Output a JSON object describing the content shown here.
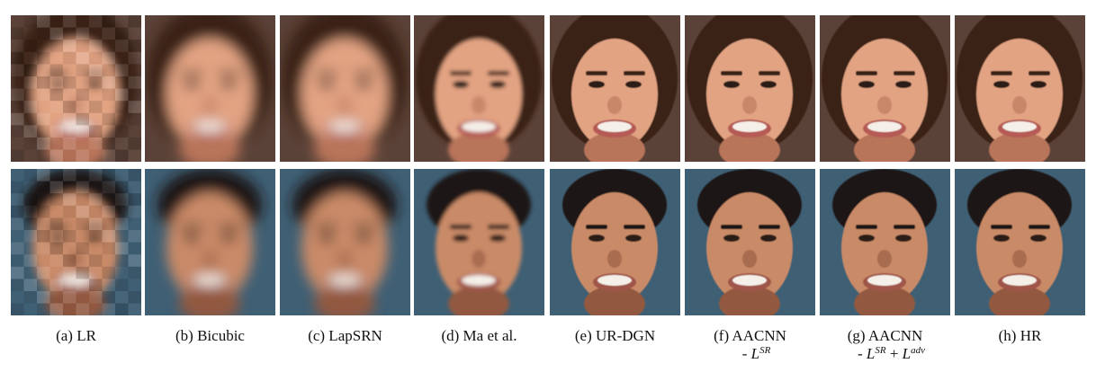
{
  "figure": {
    "columns": [
      {
        "label": "(a) LR",
        "method": "low-resolution input",
        "style": "lr"
      },
      {
        "label": "(b) Bicubic",
        "method": "bicubic",
        "style": "blur"
      },
      {
        "label": "(c) LapSRN",
        "method": "lapsrn",
        "style": "blur"
      },
      {
        "label": "(d) Ma et al.",
        "method": "ma-et-al",
        "style": "soft"
      },
      {
        "label": "(e) UR-DGN",
        "method": "ur-dgn",
        "style": "sharp"
      },
      {
        "label": "(f) AACNN",
        "label2_prefix": "- L",
        "label2_sup": "SR",
        "method": "aacnn-no-sr",
        "style": "sharp"
      },
      {
        "label": "(g) AACNN",
        "label2_prefix": "- L",
        "label2_sup": "SR",
        "label2_mid": " + L",
        "label2_sup2": "adv",
        "method": "aacnn-no-sr-adv",
        "style": "sharp"
      },
      {
        "label": "(h) HR",
        "method": "high-resolution ground truth",
        "style": "sharp"
      }
    ],
    "rows": [
      {
        "subject": "woman-smiling",
        "skin": "#e2a382",
        "skin_dark": "#b9755a",
        "hair": "#3a2119",
        "bg": "#5a4238",
        "lips": "#b55a55"
      },
      {
        "subject": "man-smiling",
        "skin": "#c98a68",
        "skin_dark": "#92593f",
        "hair": "#1f1712",
        "bg": "#3f5f74",
        "lips": "#a0554a"
      }
    ]
  }
}
